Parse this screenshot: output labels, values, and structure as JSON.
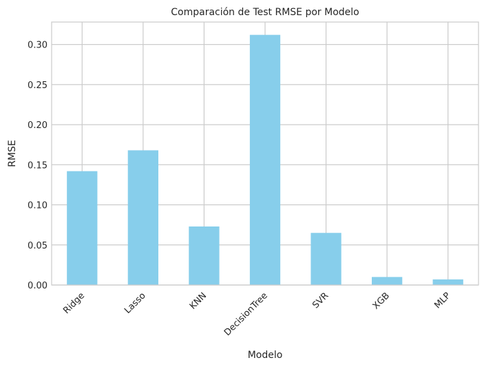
{
  "chart_data": {
    "type": "bar",
    "title": "Comparación de Test RMSE por Modelo",
    "xlabel": "Modelo",
    "ylabel": "RMSE",
    "categories": [
      "Ridge",
      "Lasso",
      "KNN",
      "DecisionTree",
      "SVR",
      "XGB",
      "MLP"
    ],
    "values": [
      0.142,
      0.168,
      0.073,
      0.312,
      0.065,
      0.01,
      0.007
    ],
    "ylim": [
      0,
      0.328
    ],
    "yticks": [
      "0.00",
      "0.05",
      "0.10",
      "0.15",
      "0.20",
      "0.25",
      "0.30"
    ],
    "ytick_values": [
      0,
      0.05,
      0.1,
      0.15,
      0.2,
      0.25,
      0.3
    ],
    "bar_color": "#87CEEB",
    "grid": true,
    "grid_color": "#cccccc",
    "axes_edge_color": "#cccccc",
    "legend": "none"
  }
}
